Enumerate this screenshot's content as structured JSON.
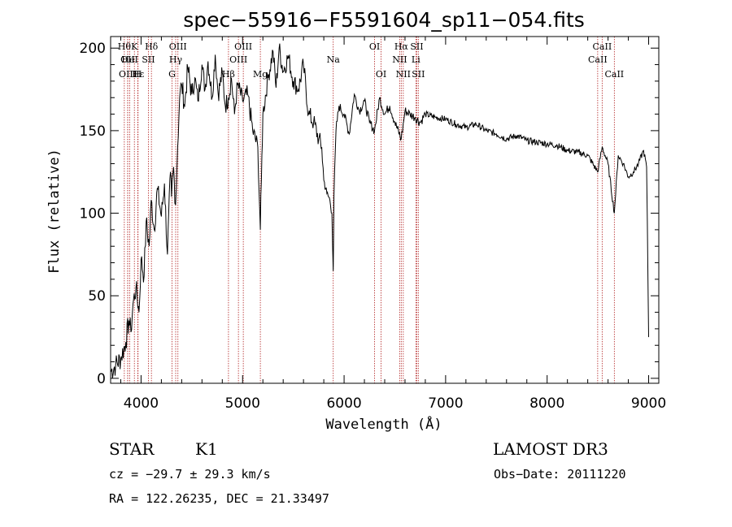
{
  "chart_data": {
    "type": "line",
    "title": "spec−55916−F5591604_sp11−054.fits",
    "xlabel": "Wavelength (Å)",
    "ylabel": "Flux (relative)",
    "xlim": [
      3700,
      9100
    ],
    "ylim": [
      -3,
      207
    ],
    "x_ticks": [
      4000,
      5000,
      6000,
      7000,
      8000,
      9000
    ],
    "y_ticks": [
      0,
      50,
      100,
      150,
      200
    ],
    "line_color": "#000000",
    "marker_color": "#b22222",
    "spectrum": {
      "name": "flux",
      "x": [
        3700,
        3750,
        3800,
        3850,
        3880,
        3900,
        3920,
        3950,
        3980,
        4000,
        4030,
        4050,
        4080,
        4100,
        4130,
        4160,
        4200,
        4230,
        4260,
        4290,
        4300,
        4320,
        4340,
        4360,
        4380,
        4400,
        4430,
        4460,
        4500,
        4530,
        4560,
        4600,
        4630,
        4660,
        4700,
        4730,
        4760,
        4800,
        4830,
        4861,
        4890,
        4920,
        4950,
        5000,
        5050,
        5100,
        5150,
        5175,
        5185,
        5200,
        5250,
        5300,
        5330,
        5360,
        5400,
        5450,
        5500,
        5550,
        5600,
        5650,
        5700,
        5750,
        5780,
        5800,
        5830,
        5860,
        5880,
        5893,
        5900,
        5920,
        5950,
        6000,
        6050,
        6100,
        6150,
        6200,
        6250,
        6300,
        6350,
        6400,
        6450,
        6500,
        6563,
        6600,
        6650,
        6700,
        6750,
        6800,
        6900,
        7000,
        7100,
        7200,
        7300,
        7400,
        7500,
        7600,
        7700,
        7800,
        7900,
        8000,
        8100,
        8200,
        8300,
        8400,
        8498,
        8542,
        8600,
        8662,
        8700,
        8750,
        8800,
        8850,
        8900,
        8950,
        8980,
        9000
      ],
      "y": [
        4,
        8,
        12,
        22,
        35,
        28,
        45,
        55,
        40,
        72,
        62,
        95,
        80,
        108,
        90,
        115,
        98,
        118,
        75,
        125,
        110,
        128,
        105,
        140,
        170,
        178,
        165,
        188,
        172,
        182,
        168,
        190,
        175,
        192,
        170,
        196,
        172,
        185,
        165,
        170,
        182,
        160,
        178,
        168,
        172,
        150,
        140,
        90,
        120,
        160,
        182,
        198,
        176,
        200,
        186,
        195,
        180,
        175,
        190,
        160,
        155,
        145,
        140,
        120,
        112,
        108,
        100,
        65,
        110,
        150,
        165,
        160,
        148,
        172,
        162,
        168,
        155,
        150,
        170,
        160,
        165,
        155,
        145,
        162,
        160,
        158,
        155,
        160,
        158,
        157,
        154,
        152,
        154,
        150,
        148,
        145,
        147,
        144,
        143,
        142,
        141,
        138,
        137,
        135,
        125,
        140,
        130,
        100,
        135,
        130,
        122,
        125,
        130,
        138,
        128,
        25
      ]
    },
    "line_markers": [
      {
        "name": "Ho",
        "wavelength": 3835,
        "label": "Hθ",
        "row": 1
      },
      {
        "name": "CII",
        "wavelength": 3868,
        "label": "OII",
        "row": 2
      },
      {
        "name": "OIII",
        "wavelength": 3869,
        "label": "OIII",
        "row": 3
      },
      {
        "name": "HeI",
        "wavelength": 3889,
        "label": "HeI",
        "row": 2
      },
      {
        "name": "He",
        "wavelength": 3970,
        "label": "Hε",
        "row": 3
      },
      {
        "name": "K",
        "wavelength": 3934,
        "label": "K",
        "row": 1
      },
      {
        "name": "H",
        "wavelength": 3968,
        "label": "H",
        "row": 3
      },
      {
        "name": "SII",
        "wavelength": 4072,
        "label": "SII",
        "row": 2
      },
      {
        "name": "Hd",
        "wavelength": 4102,
        "label": "Hδ",
        "row": 1
      },
      {
        "name": "G",
        "wavelength": 4305,
        "label": "G",
        "row": 3
      },
      {
        "name": "Hg",
        "wavelength": 4341,
        "label": "Hγ",
        "row": 2
      },
      {
        "name": "OIII4363",
        "wavelength": 4363,
        "label": "OIII",
        "row": 1
      },
      {
        "name": "Hb",
        "wavelength": 4861,
        "label": "Hβ",
        "row": 3
      },
      {
        "name": "OIII4959",
        "wavelength": 4959,
        "label": "OIII",
        "row": 2
      },
      {
        "name": "OIII5007",
        "wavelength": 5007,
        "label": "OIII",
        "row": 1
      },
      {
        "name": "Mg",
        "wavelength": 5175,
        "label": "Mg",
        "row": 3
      },
      {
        "name": "Na",
        "wavelength": 5893,
        "label": "Na",
        "row": 2
      },
      {
        "name": "OI6300",
        "wavelength": 6300,
        "label": "OI",
        "row": 1
      },
      {
        "name": "OI6364",
        "wavelength": 6364,
        "label": "OI",
        "row": 3
      },
      {
        "name": "NII6548",
        "wavelength": 6548,
        "label": "NII",
        "row": 2
      },
      {
        "name": "Ha",
        "wavelength": 6563,
        "label": "Hα",
        "row": 1
      },
      {
        "name": "NII6583",
        "wavelength": 6583,
        "label": "NII",
        "row": 3
      },
      {
        "name": "Li",
        "wavelength": 6707,
        "label": "Li",
        "row": 2
      },
      {
        "name": "SII6716",
        "wavelength": 6716,
        "label": "SII",
        "row": 1
      },
      {
        "name": "SII6731",
        "wavelength": 6731,
        "label": "SII",
        "row": 3
      },
      {
        "name": "CaII8498",
        "wavelength": 8498,
        "label": "CaII",
        "row": 2
      },
      {
        "name": "CaII8542",
        "wavelength": 8542,
        "label": "CaII",
        "row": 1
      },
      {
        "name": "CaII8662",
        "wavelength": 8662,
        "label": "CaII",
        "row": 3
      }
    ]
  },
  "info": {
    "class": "STAR",
    "subclass": "K1",
    "survey": "LAMOST DR3",
    "cz": "cz = −29.7 ± 29.3 km/s",
    "obs_date": "Obs−Date: 20111220",
    "coords": "RA = 122.26235, DEC =  21.33497"
  }
}
